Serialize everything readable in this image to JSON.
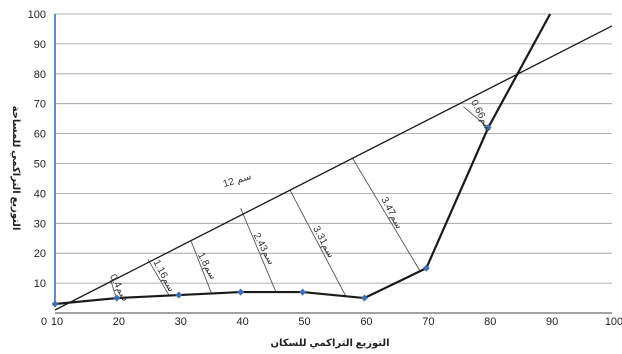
{
  "chart_data": {
    "type": "line",
    "title": "",
    "xlabel": "التوزيع التراكمي للسكان",
    "ylabel": "التوزيع التراكمي للمساحة",
    "xlim": [
      10,
      100
    ],
    "ylim": [
      0,
      100
    ],
    "x_ticks": [
      10,
      20,
      30,
      40,
      50,
      60,
      70,
      80,
      90,
      100
    ],
    "y_ticks": [
      0,
      10,
      20,
      30,
      40,
      50,
      60,
      70,
      80,
      90,
      100
    ],
    "x_tick_labels": [
      "10",
      "20",
      "30",
      "40",
      "50",
      "60",
      "70",
      "80",
      "90",
      "100"
    ],
    "y_tick_labels": [
      "0",
      "10",
      "20",
      "30",
      "40",
      "50",
      "60",
      "70",
      "80",
      "90",
      "100"
    ],
    "origin_label": "0",
    "grid": true,
    "series": [
      {
        "x": [
          10,
          20,
          30,
          40,
          50,
          60,
          70,
          80,
          90
        ],
        "y": [
          3,
          5,
          6,
          7,
          7,
          5,
          15,
          62,
          100
        ],
        "color": "#1a1a1a",
        "markers": [
          true,
          true,
          true,
          true,
          true,
          true,
          true,
          true,
          false
        ],
        "marker_color": "#3b6fb6"
      },
      {
        "x": [
          10,
          100
        ],
        "y": [
          1,
          96
        ],
        "color": "#1a1a1a"
      },
      {
        "x": [
          10,
          10
        ],
        "y": [
          3,
          100
        ],
        "color": "#3b6fb6"
      }
    ],
    "distance_segments": [
      {
        "label": "0.4سم",
        "x1": 19,
        "y1": 11,
        "x2": 19.9,
        "y2": 5
      },
      {
        "label": "1.16سم",
        "x1": 25,
        "y1": 18,
        "x2": 28.4,
        "y2": 6
      },
      {
        "label": "1.8سم",
        "x1": 32,
        "y1": 24,
        "x2": 35.3,
        "y2": 6.5
      },
      {
        "label": "2.43سم",
        "x1": 40,
        "y1": 35,
        "x2": 45.7,
        "y2": 7
      },
      {
        "label": "3.31سم",
        "x1": 48,
        "y1": 41,
        "x2": 57,
        "y2": 5.6
      },
      {
        "label": "3.47سم",
        "x1": 58,
        "y1": 52,
        "x2": 69,
        "y2": 14
      },
      {
        "label": "0.66سم",
        "x1": 76,
        "y1": 69,
        "x2": 80,
        "y2": 62
      }
    ],
    "annotations": [
      {
        "text": "12 سم"
      }
    ]
  }
}
